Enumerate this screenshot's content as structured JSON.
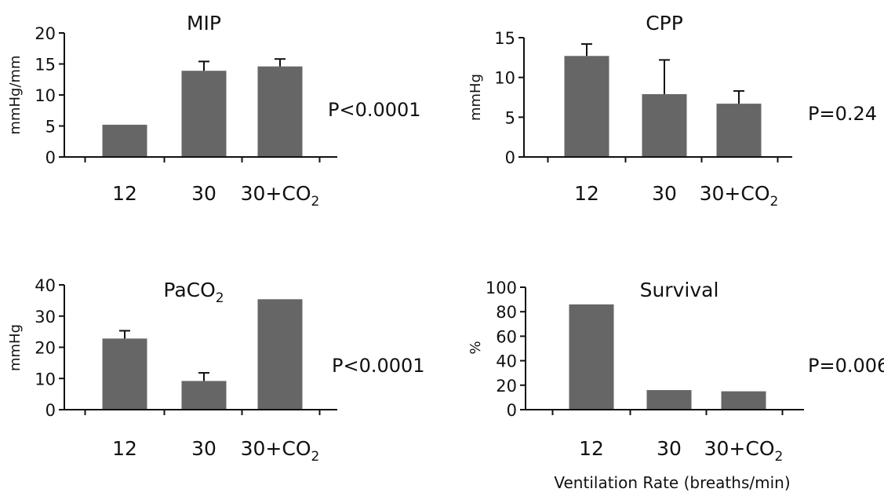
{
  "colors": {
    "bar": "#666666",
    "axis": "#111111",
    "text": "#111111"
  },
  "chart_data": [
    {
      "type": "bar",
      "title_main": "MIP",
      "title_sub": "",
      "ylabel": "mmHg/mm",
      "ylim": [
        0,
        20
      ],
      "yticks": [
        "0",
        "5",
        "10",
        "15",
        "20"
      ],
      "categories": [
        {
          "main": "12",
          "sub": ""
        },
        {
          "main": "30",
          "sub": ""
        },
        {
          "main": "30+CO",
          "sub": "2"
        }
      ],
      "values": [
        5.2,
        13.9,
        14.6
      ],
      "error_upper": [
        null,
        15.4,
        15.8
      ],
      "pvalue": "P<0.0001"
    },
    {
      "type": "bar",
      "title_main": "CPP",
      "title_sub": "",
      "ylabel": "mmHg",
      "ylim": [
        0,
        15
      ],
      "yticks": [
        "0",
        "5",
        "10",
        "15"
      ],
      "categories": [
        {
          "main": "12",
          "sub": ""
        },
        {
          "main": "30",
          "sub": ""
        },
        {
          "main": "30+CO",
          "sub": "2"
        }
      ],
      "values": [
        12.7,
        7.9,
        6.7
      ],
      "error_upper": [
        14.2,
        12.2,
        8.3
      ],
      "pvalue": "P=0.24"
    },
    {
      "type": "bar",
      "title_main": "PaCO",
      "title_sub": "2",
      "ylabel": "mmHg",
      "ylim": [
        0,
        40
      ],
      "yticks": [
        "0",
        "10",
        "20",
        "30",
        "40"
      ],
      "categories": [
        {
          "main": "12",
          "sub": ""
        },
        {
          "main": "30",
          "sub": ""
        },
        {
          "main": "30+CO",
          "sub": "2"
        }
      ],
      "values": [
        22.8,
        9.2,
        35.4
      ],
      "error_upper": [
        25.3,
        11.8,
        null
      ],
      "pvalue": "P<0.0001"
    },
    {
      "type": "bar",
      "title_main": "Survival",
      "title_sub": "",
      "ylabel": "%",
      "ylim": [
        0,
        100
      ],
      "yticks": [
        "0",
        "20",
        "40",
        "60",
        "80",
        "100"
      ],
      "categories": [
        {
          "main": "12",
          "sub": ""
        },
        {
          "main": "30",
          "sub": ""
        },
        {
          "main": "30+CO",
          "sub": "2"
        }
      ],
      "values": [
        86,
        16,
        15
      ],
      "error_upper": [
        null,
        null,
        null
      ],
      "pvalue": "P=0.006"
    }
  ],
  "xlabel": "Ventilation Rate (breaths/min)"
}
